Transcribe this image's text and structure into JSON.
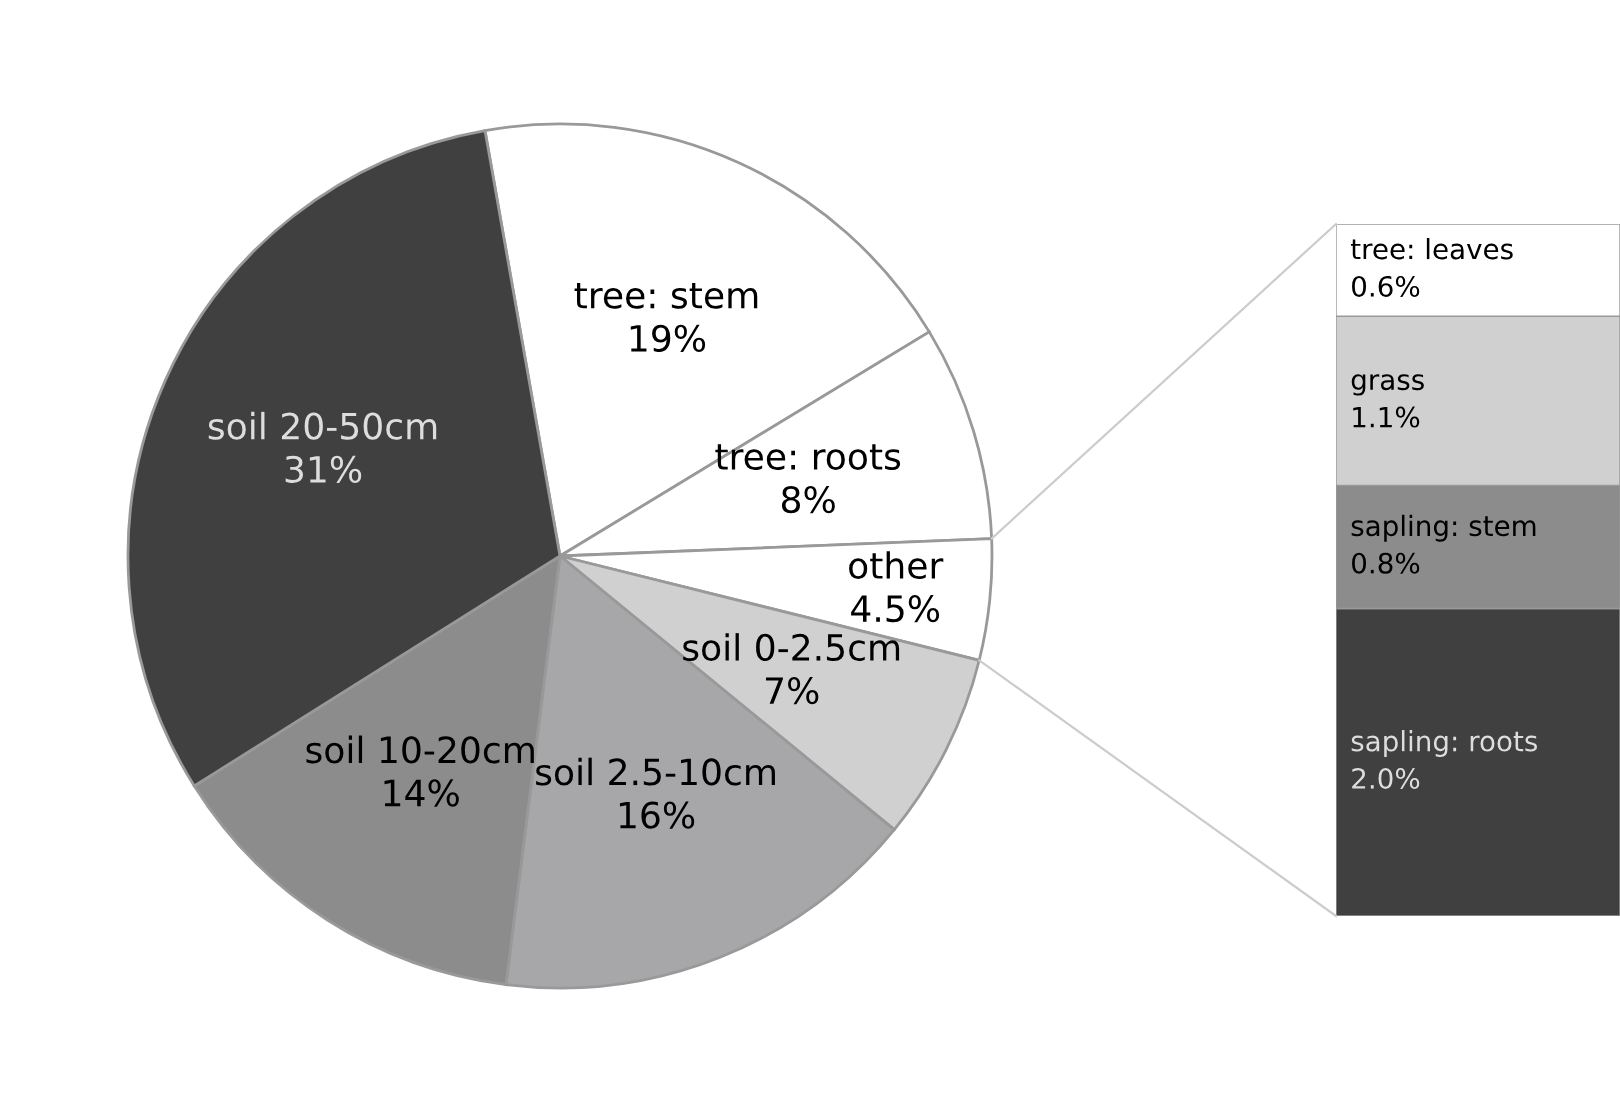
{
  "chart_data": [
    {
      "type": "pie",
      "categories": [
        "tree: stem",
        "tree: roots",
        "other",
        "soil 0-2.5cm",
        "soil 2.5-10cm",
        "soil 10-20cm",
        "soil 20-50cm"
      ],
      "values": [
        19,
        8,
        4.5,
        7,
        16,
        14,
        31
      ],
      "value_labels": [
        "19%",
        "8%",
        "4.5%",
        "7%",
        "16%",
        "14%",
        "31%"
      ],
      "colors": [
        "#ffffff",
        "#ffffff",
        "#ffffff",
        "#d0d0d0",
        "#a7a7a9",
        "#8c8c8c",
        "#404040"
      ]
    },
    {
      "type": "bar",
      "stacked": true,
      "categories": [
        null
      ],
      "series": [
        {
          "name": "sapling: roots",
          "color": "#404040",
          "values": [
            2.0
          ],
          "value_labels": [
            "2.0%"
          ]
        },
        {
          "name": "sapling: stem",
          "color": "#8c8c8c",
          "values": [
            0.8
          ],
          "value_labels": [
            "0.8%"
          ]
        },
        {
          "name": "grass",
          "color": "#d0d0d0",
          "values": [
            1.1
          ],
          "value_labels": [
            "1.1%"
          ]
        },
        {
          "name": "tree: leaves",
          "color": "#ffffff",
          "values": [
            0.6
          ],
          "value_labels": [
            "0.6%"
          ]
        }
      ]
    }
  ]
}
